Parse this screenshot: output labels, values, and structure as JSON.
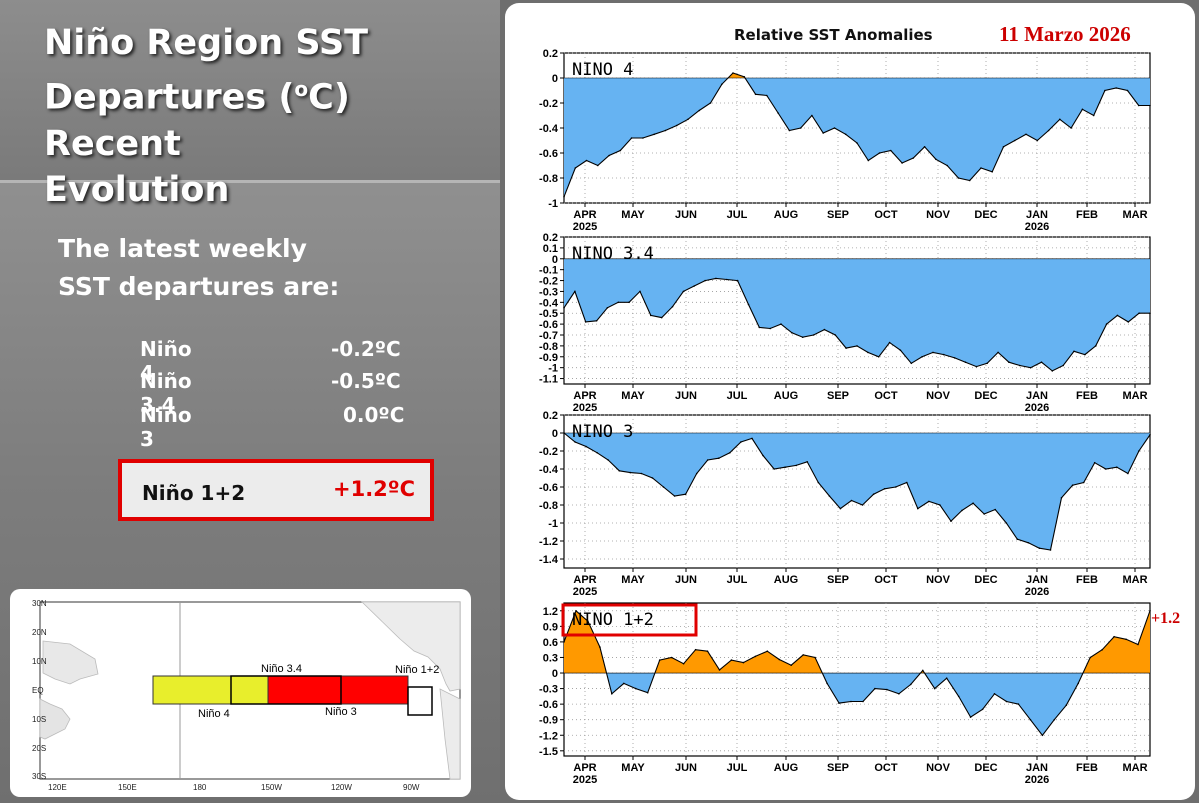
{
  "page": {
    "title_line1": "Niño Region SST",
    "title_line2_a": "Departures (",
    "title_line2_sup": "o",
    "title_line2_b": "C) Recent",
    "title_line3": "Evolution"
  },
  "intro": {
    "line1": "The latest weekly",
    "line2": "SST departures are:"
  },
  "departures": [
    {
      "label": "Niño 4",
      "value": "-0.2ºC"
    },
    {
      "label": "Niño 3.4",
      "value": "-0.5ºC"
    },
    {
      "label": "Niño 3",
      "value": "0.0ºC"
    }
  ],
  "highlight": {
    "label": "Niño 1+2",
    "value": "+1.2ºC"
  },
  "map": {
    "lat_labels": [
      "30N",
      "20N",
      "10N",
      "EQ",
      "10S",
      "20S",
      "30S"
    ],
    "lon_labels": [
      "120E",
      "150E",
      "180",
      "150W",
      "120W",
      "90W"
    ],
    "regions": [
      "Niño 4",
      "Niño 3.4",
      "Niño 3",
      "Niño 1+2"
    ],
    "colors": {
      "nino4": "#e8ee2c",
      "nino3": "#ff0000",
      "nino12_fill": "#ffffff"
    }
  },
  "chart_header": {
    "title": "Relative SST Anomalies",
    "date": "11 Marzo 2026",
    "last_value_callout": "+1.2",
    "date_color": "#cc0000"
  },
  "chart_data": [
    {
      "type": "area",
      "name": "NINO 4",
      "title": "NINO 4",
      "ylim": [
        -1,
        0.2
      ],
      "yticks": [
        "0.2",
        "0",
        "-0.2",
        "-0.4",
        "-0.6",
        "-0.8",
        "-1"
      ],
      "xticks": [
        "APR",
        "MAY",
        "JUN",
        "JUL",
        "AUG",
        "SEP",
        "OCT",
        "NOV",
        "DEC",
        "JAN",
        "FEB",
        "MAR"
      ],
      "year_labels": [
        "2025",
        "2026"
      ],
      "values": [
        -0.95,
        -0.72,
        -0.66,
        -0.7,
        -0.62,
        -0.58,
        -0.48,
        -0.48,
        -0.45,
        -0.42,
        -0.38,
        -0.33,
        -0.26,
        -0.2,
        -0.05,
        0.04,
        0.01,
        -0.13,
        -0.14,
        -0.28,
        -0.42,
        -0.4,
        -0.3,
        -0.44,
        -0.4,
        -0.45,
        -0.52,
        -0.66,
        -0.6,
        -0.58,
        -0.68,
        -0.64,
        -0.55,
        -0.65,
        -0.7,
        -0.8,
        -0.82,
        -0.72,
        -0.75,
        -0.55,
        -0.5,
        -0.45,
        -0.5,
        -0.42,
        -0.33,
        -0.4,
        -0.25,
        -0.3,
        -0.1,
        -0.08,
        -0.1,
        -0.22,
        -0.22
      ],
      "pos_color": "#ff9900",
      "neg_color": "#66b3f2"
    },
    {
      "type": "area",
      "name": "NINO 3.4",
      "title": "NINO 3.4",
      "ylim": [
        -1.15,
        0.2
      ],
      "yticks": [
        "0.2",
        "0.1",
        "0",
        "-0.1",
        "-0.2",
        "-0.3",
        "-0.4",
        "-0.5",
        "-0.6",
        "-0.7",
        "-0.8",
        "-0.9",
        "-1",
        "-1.1"
      ],
      "xticks": [
        "APR",
        "MAY",
        "JUN",
        "JUL",
        "AUG",
        "SEP",
        "OCT",
        "NOV",
        "DEC",
        "JAN",
        "FEB",
        "MAR"
      ],
      "year_labels": [
        "2025",
        "2026"
      ],
      "values": [
        -0.45,
        -0.3,
        -0.58,
        -0.57,
        -0.45,
        -0.4,
        -0.4,
        -0.3,
        -0.52,
        -0.54,
        -0.44,
        -0.3,
        -0.25,
        -0.2,
        -0.18,
        -0.19,
        -0.2,
        -0.42,
        -0.63,
        -0.64,
        -0.6,
        -0.68,
        -0.72,
        -0.7,
        -0.65,
        -0.7,
        -0.82,
        -0.8,
        -0.86,
        -0.9,
        -0.77,
        -0.84,
        -0.96,
        -0.9,
        -0.86,
        -0.88,
        -0.91,
        -0.95,
        -0.99,
        -0.96,
        -0.86,
        -0.95,
        -0.98,
        -1.0,
        -0.95,
        -1.03,
        -0.98,
        -0.85,
        -0.88,
        -0.8,
        -0.6,
        -0.52,
        -0.58,
        -0.5,
        -0.5
      ],
      "pos_color": "#ff9900",
      "neg_color": "#66b3f2"
    },
    {
      "type": "area",
      "name": "NINO 3",
      "title": "NINO 3",
      "ylim": [
        -1.5,
        0.2
      ],
      "yticks": [
        "0.2",
        "0",
        "-0.2",
        "-0.4",
        "-0.6",
        "-0.8",
        "-1",
        "-1.2",
        "-1.4"
      ],
      "xticks": [
        "APR",
        "MAY",
        "JUN",
        "JUL",
        "AUG",
        "SEP",
        "OCT",
        "NOV",
        "DEC",
        "JAN",
        "FEB",
        "MAR"
      ],
      "year_labels": [
        "2025",
        "2026"
      ],
      "values": [
        0.0,
        -0.1,
        -0.15,
        -0.22,
        -0.3,
        -0.42,
        -0.44,
        -0.45,
        -0.5,
        -0.6,
        -0.7,
        -0.68,
        -0.45,
        -0.3,
        -0.28,
        -0.22,
        -0.1,
        -0.06,
        -0.25,
        -0.4,
        -0.38,
        -0.36,
        -0.32,
        -0.55,
        -0.7,
        -0.84,
        -0.75,
        -0.8,
        -0.68,
        -0.62,
        -0.6,
        -0.55,
        -0.84,
        -0.76,
        -0.8,
        -0.98,
        -0.86,
        -0.78,
        -0.9,
        -0.85,
        -1.0,
        -1.18,
        -1.22,
        -1.28,
        -1.3,
        -0.72,
        -0.58,
        -0.55,
        -0.33,
        -0.4,
        -0.38,
        -0.45,
        -0.2,
        -0.02
      ],
      "pos_color": "#ff9900",
      "neg_color": "#66b3f2"
    },
    {
      "type": "area",
      "name": "NINO 1+2",
      "title": "NINO 1+2",
      "ylim": [
        -1.6,
        1.35
      ],
      "yticks": [
        "1.2",
        "0.9",
        "0.6",
        "0.3",
        "0",
        "-0.3",
        "-0.6",
        "-0.9",
        "-1.2",
        "-1.5"
      ],
      "xticks": [
        "APR",
        "MAY",
        "JUN",
        "JUL",
        "AUG",
        "SEP",
        "OCT",
        "NOV",
        "DEC",
        "JAN",
        "FEB",
        "MAR"
      ],
      "year_labels": [
        "2025",
        "2026"
      ],
      "values": [
        0.6,
        1.2,
        1.0,
        0.5,
        -0.4,
        -0.2,
        -0.3,
        -0.38,
        0.25,
        0.3,
        0.18,
        0.45,
        0.42,
        0.06,
        0.25,
        0.2,
        0.32,
        0.42,
        0.26,
        0.15,
        0.35,
        0.3,
        -0.2,
        -0.58,
        -0.55,
        -0.55,
        -0.3,
        -0.32,
        -0.4,
        -0.22,
        0.05,
        -0.3,
        -0.1,
        -0.45,
        -0.85,
        -0.7,
        -0.4,
        -0.55,
        -0.6,
        -0.9,
        -1.2,
        -0.9,
        -0.62,
        -0.2,
        0.3,
        0.45,
        0.7,
        0.65,
        0.55,
        1.2
      ],
      "pos_color": "#ff9900",
      "neg_color": "#66b3f2"
    }
  ]
}
